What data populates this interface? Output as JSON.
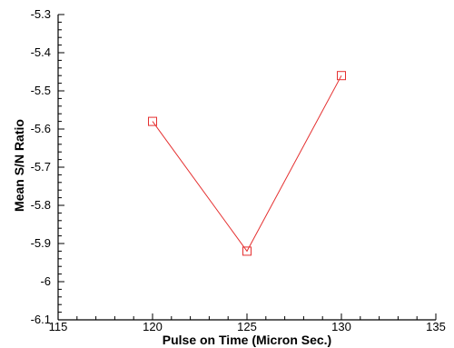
{
  "chart_data": {
    "type": "line",
    "title": "",
    "xlabel": "Pulse on Time (Micron Sec.)",
    "ylabel": "Mean S/N Ratio",
    "xlim": [
      115,
      135
    ],
    "ylim": [
      -6.1,
      -5.3
    ],
    "x_ticks": [
      "115",
      "120",
      "125",
      "130",
      "135"
    ],
    "y_ticks": [
      "-6.1",
      "-6",
      "-5.9",
      "-5.8",
      "-5.7",
      "-5.6",
      "-5.5",
      "-5.4",
      "-5.3"
    ],
    "grid": false,
    "series": [
      {
        "x": [
          120,
          125,
          130
        ],
        "y": [
          -5.58,
          -5.92,
          -5.46
        ],
        "color": "#e53030",
        "marker": "square"
      }
    ]
  }
}
